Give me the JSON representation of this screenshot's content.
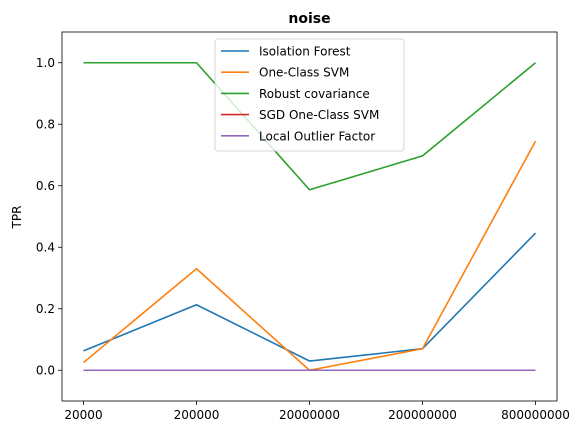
{
  "chart_data": {
    "type": "line",
    "title": "noise",
    "xlabel": "",
    "ylabel": "TPR",
    "categories": [
      "20000",
      "200000",
      "20000000",
      "200000000",
      "800000000"
    ],
    "ylim": [
      -0.1,
      1.1
    ],
    "yticks": [
      0.0,
      0.2,
      0.4,
      0.6,
      0.8,
      1.0
    ],
    "ytick_labels": [
      "0.0",
      "0.2",
      "0.4",
      "0.6",
      "0.8",
      "1.0"
    ],
    "grid": false,
    "legend": "top-center",
    "series": [
      {
        "name": "Isolation Forest",
        "color": "#1f77b4",
        "values": [
          0.063,
          0.213,
          0.03,
          0.07,
          0.446
        ]
      },
      {
        "name": "One-Class SVM",
        "color": "#ff7f0e",
        "values": [
          0.025,
          0.33,
          0.0,
          0.07,
          0.745
        ]
      },
      {
        "name": "Robust covariance",
        "color": "#2ca02c",
        "values": [
          1.0,
          1.0,
          0.587,
          0.697,
          1.0
        ]
      },
      {
        "name": "SGD One-Class SVM",
        "color": "#d62728",
        "values": [
          0.0,
          0.0,
          0.0,
          0.0,
          0.0
        ]
      },
      {
        "name": "Local Outlier Factor",
        "color": "#9467bd",
        "values": [
          0.0,
          0.0,
          0.0,
          0.0,
          0.0
        ]
      }
    ]
  }
}
